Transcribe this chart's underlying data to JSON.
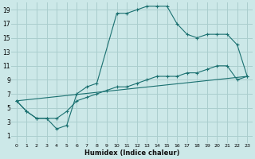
{
  "xlabel": "Humidex (Indice chaleur)",
  "bg_color": "#cce8e8",
  "grid_color": "#aacece",
  "line_color": "#1a7070",
  "line1_x": [
    0,
    1,
    2,
    3,
    4,
    5,
    6,
    7,
    8,
    10,
    11,
    12,
    13,
    14,
    15,
    16,
    17,
    18,
    19,
    20,
    21,
    22,
    23
  ],
  "line1_y": [
    6,
    4.5,
    3.5,
    3.5,
    2,
    2.5,
    7,
    8,
    8.5,
    18.5,
    18.5,
    19,
    19.5,
    19.5,
    19.5,
    17,
    15.5,
    15,
    15.5,
    15.5,
    15.5,
    14,
    9.5
  ],
  "line2_x": [
    0,
    1,
    2,
    3,
    4,
    5,
    6,
    7,
    8,
    9,
    10,
    11,
    12,
    13,
    14,
    15,
    16,
    17,
    18,
    19,
    20,
    21,
    22,
    23
  ],
  "line2_y": [
    6,
    4.5,
    3.5,
    3.5,
    3.5,
    4.5,
    6,
    6.5,
    7,
    7.5,
    8,
    8,
    8.5,
    9,
    9.5,
    9.5,
    9.5,
    10,
    10,
    10.5,
    11,
    11,
    9,
    9.5
  ],
  "line3_x": [
    0,
    23
  ],
  "line3_y": [
    6,
    9.5
  ],
  "xlim": [
    -0.5,
    23.5
  ],
  "ylim": [
    0,
    20
  ],
  "yticks": [
    1,
    3,
    5,
    7,
    9,
    11,
    13,
    15,
    17,
    19
  ],
  "xticks": [
    0,
    1,
    2,
    3,
    4,
    5,
    6,
    7,
    8,
    9,
    10,
    11,
    12,
    13,
    14,
    15,
    16,
    17,
    18,
    19,
    20,
    21,
    22,
    23
  ],
  "tick_labelsize": 5,
  "xlabel_fontsize": 6
}
